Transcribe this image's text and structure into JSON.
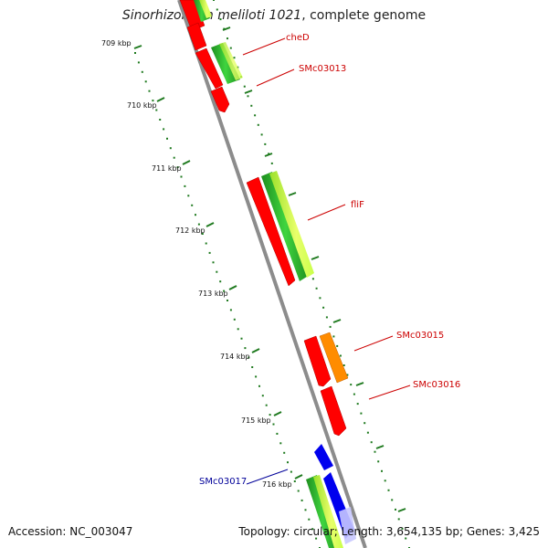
{
  "title": {
    "organism": "Sinorhizobium meliloti 1021",
    "suffix": ", complete genome"
  },
  "footer": {
    "accession": "Accession: NC_003047",
    "summary": "Topology: circular; Length: 3,654,135 bp; Genes: 3,425"
  },
  "ticks": [
    "709 kbp",
    "710 kbp",
    "711 kbp",
    "712 kbp",
    "713 kbp",
    "714 kbp",
    "715 kbp",
    "716 kbp"
  ],
  "genes": [
    {
      "name": "cheD",
      "color": "#cc0000"
    },
    {
      "name": "SMc03013",
      "color": "#cc0000"
    },
    {
      "name": "fliF",
      "color": "#cc0000"
    },
    {
      "name": "SMc03015",
      "color": "#cc0000"
    },
    {
      "name": "SMc03016",
      "color": "#cc0000"
    },
    {
      "name": "SMc03017",
      "color": "#000099"
    }
  ],
  "colors": {
    "backbone": "#8c8c8c",
    "tick_dots": "#1f7a1f",
    "cds_red": "#ff0000",
    "cds_green": "#2db82d",
    "cds_lightgreen": "#b8ff3d",
    "cds_orange": "#ff8c00",
    "cds_blue": "#0000ee"
  }
}
